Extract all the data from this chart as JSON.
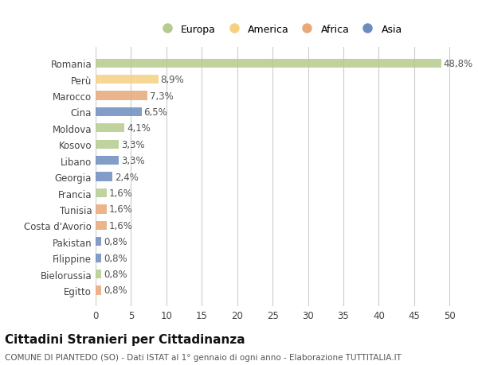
{
  "countries": [
    "Romania",
    "Perù",
    "Marocco",
    "Cina",
    "Moldova",
    "Kosovo",
    "Libano",
    "Georgia",
    "Francia",
    "Tunisia",
    "Costa d'Avorio",
    "Pakistan",
    "Filippine",
    "Bielorussia",
    "Egitto"
  ],
  "values": [
    48.8,
    8.9,
    7.3,
    6.5,
    4.1,
    3.3,
    3.3,
    2.4,
    1.6,
    1.6,
    1.6,
    0.8,
    0.8,
    0.8,
    0.8
  ],
  "continents": [
    "Europa",
    "America",
    "Africa",
    "Asia",
    "Europa",
    "Europa",
    "Asia",
    "Asia",
    "Europa",
    "Africa",
    "Africa",
    "Asia",
    "Asia",
    "Europa",
    "Africa"
  ],
  "colors": {
    "Europa": "#b5cc8e",
    "America": "#f5d080",
    "Africa": "#e8a878",
    "Asia": "#6b8cbf"
  },
  "xlim": [
    0,
    52
  ],
  "xticks": [
    0,
    5,
    10,
    15,
    20,
    25,
    30,
    35,
    40,
    45,
    50
  ],
  "title": "Cittadini Stranieri per Cittadinanza",
  "subtitle": "COMUNE DI PIANTEDO (SO) - Dati ISTAT al 1° gennaio di ogni anno - Elaborazione TUTTITALIA.IT",
  "background_color": "#ffffff",
  "bar_height": 0.55,
  "label_fontsize": 8.5,
  "tick_fontsize": 8.5,
  "title_fontsize": 11,
  "subtitle_fontsize": 7.5,
  "legend_order": [
    "Europa",
    "America",
    "Africa",
    "Asia"
  ]
}
